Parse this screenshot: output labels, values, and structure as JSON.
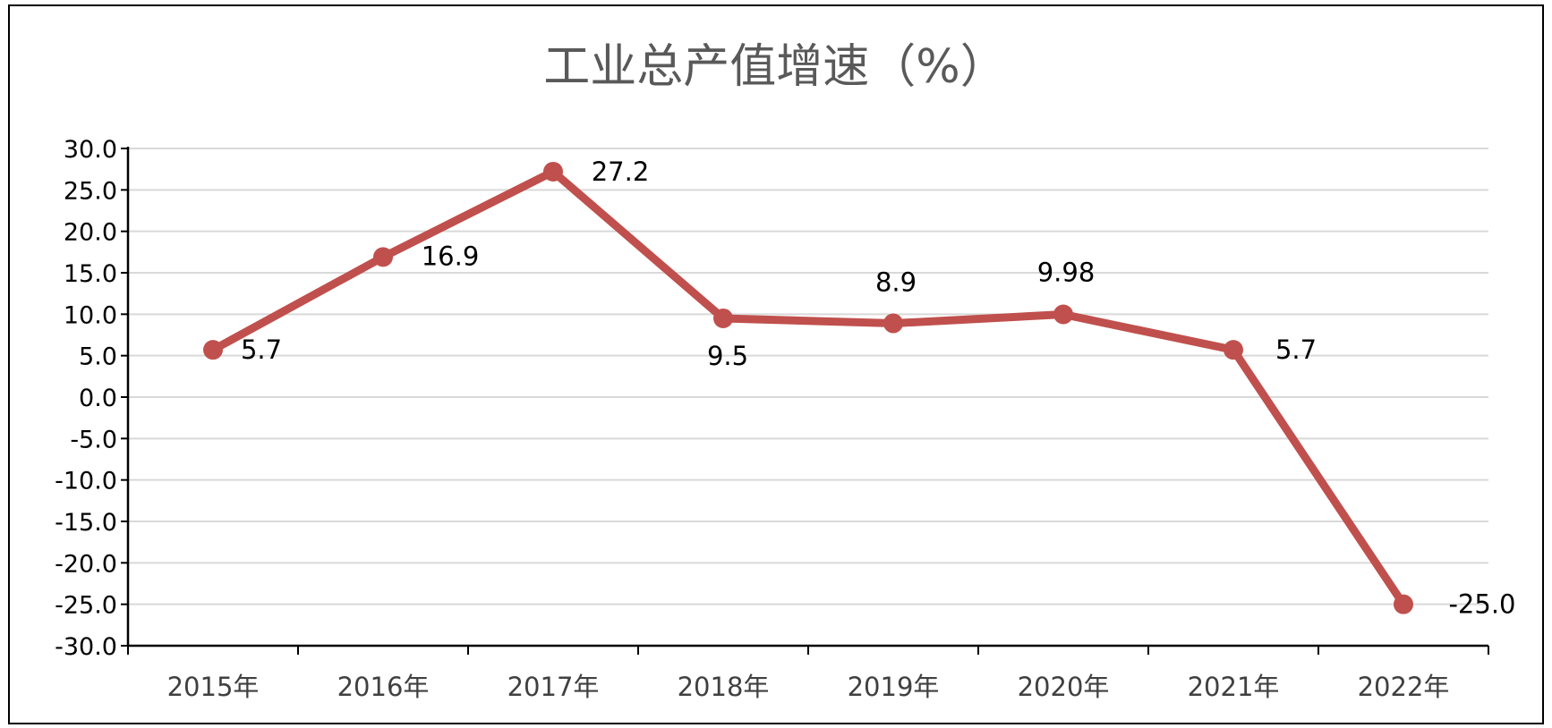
{
  "chart_data": {
    "type": "line",
    "title": "工业总产值增速（%）",
    "xlabel": "",
    "ylabel": "",
    "categories": [
      "2015年",
      "2016年",
      "2017年",
      "2018年",
      "2019年",
      "2020年",
      "2021年",
      "2022年"
    ],
    "series": [
      {
        "values": [
          5.7,
          16.9,
          27.2,
          9.5,
          8.9,
          9.98,
          5.7,
          -25.0
        ],
        "labels": [
          "5.7",
          "16.9",
          "27.2",
          "9.5",
          "8.9",
          "9.98",
          "5.7",
          "-25.0"
        ],
        "color": "#C0504D"
      }
    ],
    "ylim": [
      -30,
      30
    ],
    "ytick_step": 5,
    "ytick_labels": [
      "30.0",
      "25.0",
      "20.0",
      "15.0",
      "10.0",
      "5.0",
      "0.0",
      "-5.0",
      "-10.0",
      "-15.0",
      "-20.0",
      "-25.0",
      "-30.0"
    ],
    "grid": true,
    "legend": "none"
  }
}
